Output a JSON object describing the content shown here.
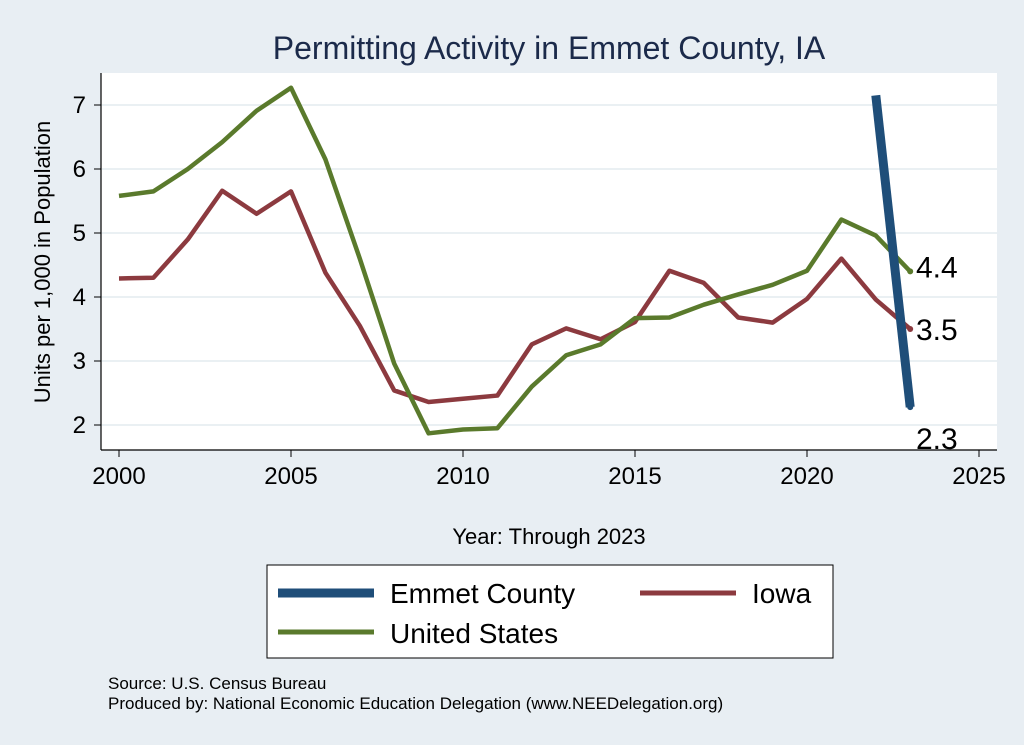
{
  "chart_data": {
    "type": "line",
    "title": "Permitting Activity in Emmet County, IA",
    "xlabel": "Year: Through 2023",
    "ylabel": "Units per 1,000 in Population",
    "xlim": [
      2000,
      2025
    ],
    "ylim": [
      1.7,
      7.5
    ],
    "xticks": [
      2000,
      2005,
      2010,
      2015,
      2020,
      2025
    ],
    "yticks": [
      2,
      3,
      4,
      5,
      6,
      7
    ],
    "grid": true,
    "legend_position": "bottom",
    "series": [
      {
        "name": "Emmet County",
        "color": "#1f4e79",
        "x": [
          2022,
          2023
        ],
        "values": [
          7.15,
          2.28
        ],
        "end_label": "2.3"
      },
      {
        "name": "Iowa",
        "color": "#8c3a3f",
        "x": [
          2000,
          2001,
          2002,
          2003,
          2004,
          2005,
          2006,
          2007,
          2008,
          2009,
          2010,
          2011,
          2012,
          2013,
          2014,
          2015,
          2016,
          2017,
          2018,
          2019,
          2020,
          2021,
          2022,
          2023
        ],
        "values": [
          4.29,
          4.3,
          4.9,
          5.66,
          5.3,
          5.65,
          4.38,
          3.55,
          2.54,
          2.36,
          2.41,
          2.46,
          3.26,
          3.51,
          3.34,
          3.61,
          4.41,
          4.22,
          3.68,
          3.6,
          3.97,
          4.6,
          3.96,
          3.5
        ],
        "end_label": "3.5"
      },
      {
        "name": "United States",
        "color": "#5a7a2c",
        "x": [
          2000,
          2001,
          2002,
          2003,
          2004,
          2005,
          2006,
          2007,
          2008,
          2009,
          2010,
          2011,
          2012,
          2013,
          2014,
          2015,
          2016,
          2017,
          2018,
          2019,
          2020,
          2021,
          2022,
          2023
        ],
        "values": [
          5.58,
          5.65,
          6.0,
          6.42,
          6.91,
          7.27,
          6.15,
          4.6,
          2.96,
          1.87,
          1.93,
          1.95,
          2.6,
          3.09,
          3.26,
          3.67,
          3.68,
          3.88,
          4.04,
          4.19,
          4.41,
          5.21,
          4.96,
          4.4
        ],
        "end_label": "4.4"
      }
    ],
    "legend_order": [
      "Emmet County",
      "Iowa",
      "United States"
    ]
  },
  "footer": {
    "source": "Source: U.S. Census Bureau",
    "produced_by": "Produced by: National Economic Education Delegation (www.NEEDelegation.org)"
  }
}
